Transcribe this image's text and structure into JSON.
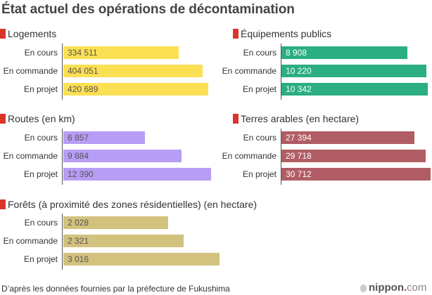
{
  "title": "État actuel des opérations de décontamination",
  "footer": {
    "source": "D’après les données fournies par la préfecture de Fukushima",
    "logo_name": "nippon",
    "logo_dot": ".",
    "logo_tld": "com"
  },
  "colors": {
    "marker": "#d9352b",
    "logements": "#fbe054",
    "equipements": "#2bae82",
    "routes": "#b79df5",
    "terres": "#b05d65",
    "forets": "#d2c27e"
  },
  "chart_data": [
    {
      "type": "bar",
      "orientation": "horizontal",
      "title": "Logements",
      "categories": [
        "En cours",
        "En commande",
        "En projet"
      ],
      "values": [
        334511,
        404051,
        420689
      ],
      "labels": [
        "334 511",
        "404 051",
        "420 689"
      ],
      "color": "#fbe054",
      "value_label_color": "#555555"
    },
    {
      "type": "bar",
      "orientation": "horizontal",
      "title": "Équipements publics",
      "categories": [
        "En cours",
        "En commande",
        "En projet"
      ],
      "values": [
        8908,
        10220,
        10342
      ],
      "labels": [
        "8 908",
        "10 220",
        "10 342"
      ],
      "color": "#2bae82",
      "value_label_color": "#ffffff"
    },
    {
      "type": "bar",
      "orientation": "horizontal",
      "title": "Routes (en km)",
      "categories": [
        "En cours",
        "En commande",
        "En projet"
      ],
      "values": [
        6857,
        9884,
        12390
      ],
      "labels": [
        "6 857",
        "9 884",
        "12 390"
      ],
      "color": "#b79df5",
      "value_label_color": "#555555"
    },
    {
      "type": "bar",
      "orientation": "horizontal",
      "title": "Terres arables (en hectare)",
      "categories": [
        "En cours",
        "En commande",
        "En projet"
      ],
      "values": [
        27394,
        29718,
        30712
      ],
      "labels": [
        "27 394",
        "29 718",
        "30 712"
      ],
      "color": "#b05d65",
      "value_label_color": "#ffffff"
    },
    {
      "type": "bar",
      "orientation": "horizontal",
      "title": "Forêts (à proximité des zones résidentielles) (en hectare)",
      "categories": [
        "En cours",
        "En commande",
        "En projet"
      ],
      "values": [
        2028,
        2321,
        3016
      ],
      "labels": [
        "2 028",
        "2 321",
        "3 016"
      ],
      "color": "#d2c27e",
      "value_label_color": "#555555"
    }
  ]
}
